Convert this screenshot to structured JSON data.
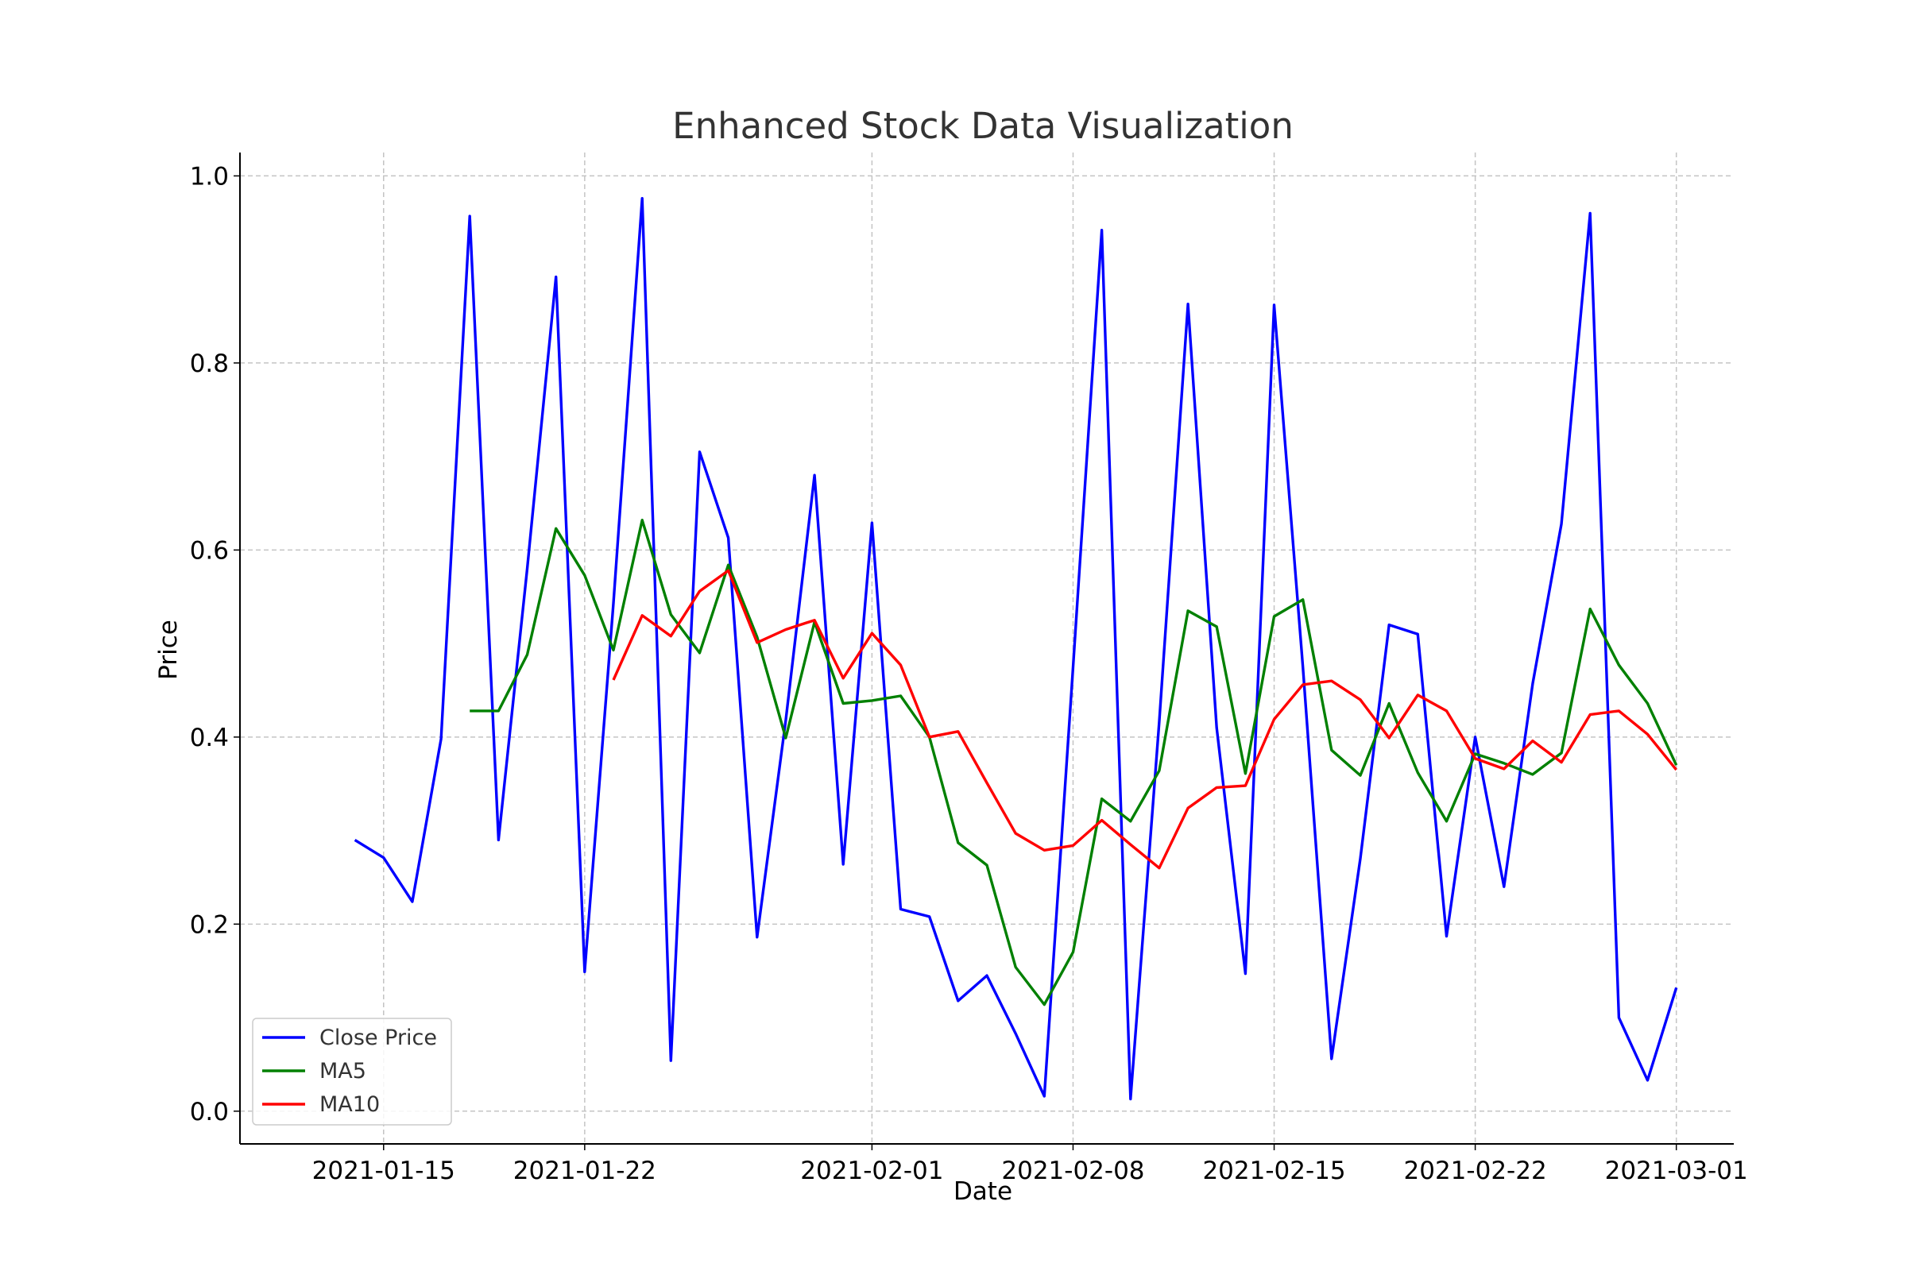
{
  "chart_data": {
    "type": "line",
    "title": "Enhanced Stock Data Visualization",
    "xlabel": "Date",
    "ylabel": "Price",
    "x_type": "date",
    "xlim": [
      "2021-01-10",
      "2021-03-03"
    ],
    "ylim": [
      -0.035,
      1.025
    ],
    "x_ticks": [
      "2021-01-15",
      "2021-01-22",
      "2021-02-01",
      "2021-02-08",
      "2021-02-15",
      "2021-02-22",
      "2021-03-01"
    ],
    "y_ticks": [
      0.0,
      0.2,
      0.4,
      0.6,
      0.8,
      1.0
    ],
    "y_tick_labels": [
      "0.0",
      "0.2",
      "0.4",
      "0.6",
      "0.8",
      "1.0"
    ],
    "grid": true,
    "legend_position": "lower-left",
    "dates": [
      "2021-01-14",
      "2021-01-15",
      "2021-01-16",
      "2021-01-17",
      "2021-01-18",
      "2021-01-19",
      "2021-01-20",
      "2021-01-21",
      "2021-01-22",
      "2021-01-23",
      "2021-01-24",
      "2021-01-25",
      "2021-01-26",
      "2021-01-27",
      "2021-01-28",
      "2021-01-29",
      "2021-01-30",
      "2021-01-31",
      "2021-02-01",
      "2021-02-02",
      "2021-02-03",
      "2021-02-04",
      "2021-02-05",
      "2021-02-06",
      "2021-02-07",
      "2021-02-08",
      "2021-02-09",
      "2021-02-10",
      "2021-02-11",
      "2021-02-12",
      "2021-02-13",
      "2021-02-14",
      "2021-02-15",
      "2021-02-16",
      "2021-02-17",
      "2021-02-18",
      "2021-02-19",
      "2021-02-20",
      "2021-02-21",
      "2021-02-22",
      "2021-02-23",
      "2021-02-24",
      "2021-02-25",
      "2021-02-26",
      "2021-02-27",
      "2021-02-28",
      "2021-03-01"
    ],
    "series": [
      {
        "name": "Close Price",
        "color": "#0000ff",
        "values": [
          0.29,
          0.271,
          0.224,
          0.398,
          0.957,
          0.29,
          0.58,
          0.892,
          0.149,
          0.543,
          0.976,
          0.054,
          0.705,
          0.613,
          0.186,
          0.418,
          0.68,
          0.264,
          0.629,
          0.216,
          0.208,
          0.118,
          0.145,
          0.083,
          0.016,
          0.475,
          0.942,
          0.013,
          0.416,
          0.863,
          0.41,
          0.147,
          0.862,
          0.475,
          0.056,
          0.27,
          0.52,
          0.51,
          0.187,
          0.4,
          0.24,
          0.457,
          0.628,
          0.96,
          0.1,
          0.033,
          0.132
        ]
      },
      {
        "name": "MA5",
        "color": "#008000",
        "values": [
          null,
          null,
          null,
          null,
          0.428,
          0.428,
          0.488,
          0.623,
          0.573,
          0.493,
          0.632,
          0.531,
          0.49,
          0.584,
          0.507,
          0.399,
          0.523,
          0.436,
          0.439,
          0.444,
          0.4,
          0.287,
          0.263,
          0.154,
          0.114,
          0.17,
          0.334,
          0.31,
          0.364,
          0.535,
          0.518,
          0.361,
          0.529,
          0.547,
          0.386,
          0.359,
          0.436,
          0.362,
          0.31,
          0.382,
          0.372,
          0.36,
          0.383,
          0.537,
          0.477,
          0.436,
          0.37
        ]
      },
      {
        "name": "MA10",
        "color": "#ff0000",
        "values": [
          null,
          null,
          null,
          null,
          null,
          null,
          null,
          null,
          null,
          0.461,
          0.53,
          0.508,
          0.556,
          0.578,
          0.501,
          0.515,
          0.525,
          0.463,
          0.511,
          0.477,
          0.4,
          0.406,
          0.351,
          0.297,
          0.279,
          0.284,
          0.311,
          0.285,
          0.26,
          0.324,
          0.346,
          0.348,
          0.419,
          0.456,
          0.46,
          0.44,
          0.399,
          0.445,
          0.428,
          0.377,
          0.366,
          0.396,
          0.373,
          0.424,
          0.428,
          0.403,
          0.365
        ]
      }
    ]
  }
}
